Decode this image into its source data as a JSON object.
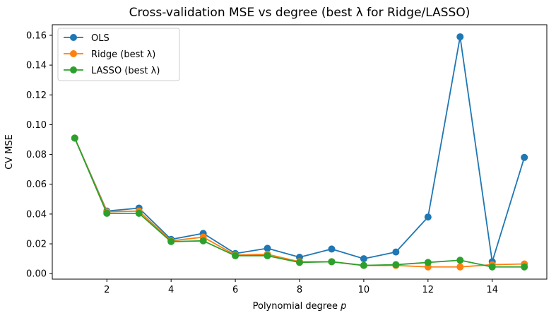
{
  "chart_data": {
    "type": "line",
    "title": "Cross-validation MSE vs degree (best λ for Ridge/LASSO)",
    "xlabel": "Polynomial degree p",
    "xlabel_main": "Polynomial degree ",
    "xlabel_var": "p",
    "ylabel": "CV MSE",
    "xlim": [
      0.3,
      15.7
    ],
    "ylim": [
      -0.0037,
      0.1671
    ],
    "x_ticks": [
      2,
      4,
      6,
      8,
      10,
      12,
      14
    ],
    "y_ticks": [
      0.0,
      0.02,
      0.04,
      0.06,
      0.08,
      0.1,
      0.12,
      0.14,
      0.16
    ],
    "y_tick_labels": [
      "0.00",
      "0.02",
      "0.04",
      "0.06",
      "0.08",
      "0.10",
      "0.12",
      "0.14",
      "0.16"
    ],
    "grid": false,
    "legend_position": "top-left",
    "x": [
      1,
      2,
      3,
      4,
      5,
      6,
      7,
      8,
      9,
      10,
      11,
      12,
      13,
      14,
      15
    ],
    "series": [
      {
        "name": "OLS",
        "color": "#1f77b4",
        "values": [
          0.091,
          0.042,
          0.044,
          0.023,
          0.027,
          0.0135,
          0.017,
          0.011,
          0.0165,
          0.01,
          0.0145,
          0.038,
          0.159,
          0.008,
          0.078
        ]
      },
      {
        "name": "Ridge (best λ)",
        "color": "#ff7f0e",
        "values": [
          0.091,
          0.0415,
          0.042,
          0.022,
          0.0245,
          0.0125,
          0.013,
          0.008,
          0.008,
          0.0055,
          0.0055,
          0.0045,
          0.0045,
          0.006,
          0.0065
        ]
      },
      {
        "name": "LASSO (best λ)",
        "color": "#2ca02c",
        "values": [
          0.091,
          0.0405,
          0.0405,
          0.0215,
          0.022,
          0.012,
          0.012,
          0.0075,
          0.008,
          0.0055,
          0.006,
          0.0075,
          0.009,
          0.0045,
          0.0045
        ]
      }
    ]
  }
}
